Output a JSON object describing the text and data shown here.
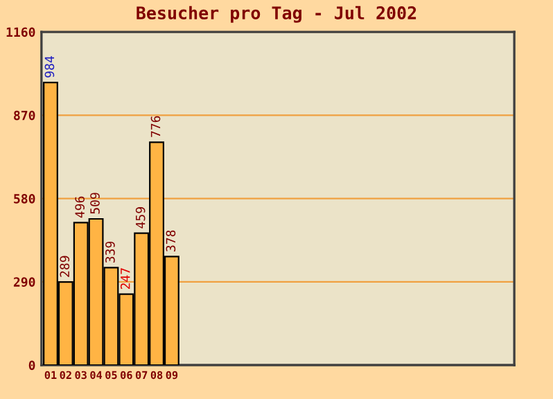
{
  "chart_data": {
    "type": "bar",
    "title": "Besucher pro Tag - Jul 2002",
    "categories": [
      "01",
      "02",
      "03",
      "04",
      "05",
      "06",
      "07",
      "08",
      "09",
      null,
      null,
      null,
      null,
      null,
      null,
      null,
      null,
      null,
      null,
      null,
      null,
      null,
      null,
      null,
      null,
      null,
      null,
      null,
      null,
      null,
      null
    ],
    "values": [
      984,
      289,
      496,
      509,
      339,
      247,
      459,
      776,
      378,
      null,
      null,
      null,
      null,
      null,
      null,
      null,
      null,
      null,
      null,
      null,
      null,
      null,
      null,
      null,
      null,
      null,
      null,
      null,
      null,
      null,
      null
    ],
    "color": "#ffb444",
    "ylim": [
      0,
      1160
    ],
    "yticks": [
      0,
      290,
      580,
      870,
      1160
    ],
    "grid": "y",
    "data_labels": true
  }
}
